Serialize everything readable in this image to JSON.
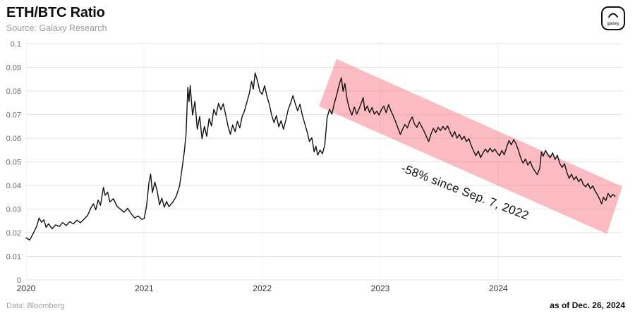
{
  "header": {
    "title": "ETH/BTC Ratio",
    "source": "Source: Galaxy Research",
    "logo_label": "galaxy"
  },
  "footer": {
    "data_source": "Data: Bloomberg",
    "as_of": "as of Dec. 26, 2024"
  },
  "chart_data": {
    "type": "line",
    "title": "ETH/BTC Ratio",
    "xlabel": "",
    "ylabel": "",
    "xlim": [
      2020,
      2025.05
    ],
    "ylim": [
      0,
      0.1
    ],
    "grid": true,
    "line_color": "#111111",
    "x_ticks": [
      {
        "value": 2020,
        "label": "2020"
      },
      {
        "value": 2021,
        "label": "2021"
      },
      {
        "value": 2022,
        "label": "2022"
      },
      {
        "value": 2023,
        "label": "2023"
      },
      {
        "value": 2024,
        "label": "2024"
      }
    ],
    "y_ticks": [
      {
        "value": 0,
        "label": "0"
      },
      {
        "value": 0.01,
        "label": "0.01"
      },
      {
        "value": 0.02,
        "label": "0.02"
      },
      {
        "value": 0.03,
        "label": "0.03"
      },
      {
        "value": 0.04,
        "label": "0.04"
      },
      {
        "value": 0.05,
        "label": "0.05"
      },
      {
        "value": 0.06,
        "label": "0.06"
      },
      {
        "value": 0.07,
        "label": "0.07"
      },
      {
        "value": 0.08,
        "label": "0.08"
      },
      {
        "value": 0.09,
        "label": "0.09"
      },
      {
        "value": 0.1,
        "label": "0.1"
      }
    ],
    "band": {
      "color": "#f4717e",
      "opacity": 0.48,
      "corners": [
        [
          2022.63,
          0.0935
        ],
        [
          2025.05,
          0.0395
        ],
        [
          2024.92,
          0.0195
        ],
        [
          2022.48,
          0.0735
        ]
      ]
    },
    "annotation": {
      "text": "-58% since Sep. 7, 2022",
      "x": 2023.17,
      "y": 0.046,
      "rotation_deg": 21
    },
    "series": [
      {
        "name": "ETH/BTC",
        "points": [
          [
            2020.0,
            0.0178
          ],
          [
            2020.03,
            0.0169
          ],
          [
            2020.06,
            0.0196
          ],
          [
            2020.09,
            0.0228
          ],
          [
            2020.11,
            0.0262
          ],
          [
            2020.13,
            0.0244
          ],
          [
            2020.15,
            0.0255
          ],
          [
            2020.17,
            0.0222
          ],
          [
            2020.19,
            0.0238
          ],
          [
            2020.22,
            0.0216
          ],
          [
            2020.25,
            0.0233
          ],
          [
            2020.28,
            0.0226
          ],
          [
            2020.31,
            0.0243
          ],
          [
            2020.34,
            0.023
          ],
          [
            2020.37,
            0.0247
          ],
          [
            2020.4,
            0.0237
          ],
          [
            2020.43,
            0.0253
          ],
          [
            2020.46,
            0.0242
          ],
          [
            2020.49,
            0.0257
          ],
          [
            2020.52,
            0.0272
          ],
          [
            2020.55,
            0.0306
          ],
          [
            2020.57,
            0.0322
          ],
          [
            2020.59,
            0.0297
          ],
          [
            2020.61,
            0.0338
          ],
          [
            2020.63,
            0.0316
          ],
          [
            2020.655,
            0.0392
          ],
          [
            2020.67,
            0.0358
          ],
          [
            2020.69,
            0.0372
          ],
          [
            2020.71,
            0.033
          ],
          [
            2020.74,
            0.0344
          ],
          [
            2020.77,
            0.0312
          ],
          [
            2020.8,
            0.0299
          ],
          [
            2020.83,
            0.0287
          ],
          [
            2020.86,
            0.0303
          ],
          [
            2020.89,
            0.0281
          ],
          [
            2020.92,
            0.0262
          ],
          [
            2020.95,
            0.0271
          ],
          [
            2020.98,
            0.0256
          ],
          [
            2021.0,
            0.026
          ],
          [
            2021.02,
            0.0312
          ],
          [
            2021.04,
            0.0408
          ],
          [
            2021.055,
            0.0448
          ],
          [
            2021.07,
            0.037
          ],
          [
            2021.09,
            0.0414
          ],
          [
            2021.11,
            0.0378
          ],
          [
            2021.13,
            0.0318
          ],
          [
            2021.15,
            0.0346
          ],
          [
            2021.17,
            0.0308
          ],
          [
            2021.19,
            0.0332
          ],
          [
            2021.21,
            0.031
          ],
          [
            2021.24,
            0.0328
          ],
          [
            2021.27,
            0.0352
          ],
          [
            2021.3,
            0.0398
          ],
          [
            2021.32,
            0.0468
          ],
          [
            2021.34,
            0.0542
          ],
          [
            2021.355,
            0.0618
          ],
          [
            2021.37,
            0.0815
          ],
          [
            2021.38,
            0.0755
          ],
          [
            2021.39,
            0.0822
          ],
          [
            2021.41,
            0.0698
          ],
          [
            2021.43,
            0.0756
          ],
          [
            2021.45,
            0.0638
          ],
          [
            2021.47,
            0.0692
          ],
          [
            2021.49,
            0.0598
          ],
          [
            2021.51,
            0.065
          ],
          [
            2021.53,
            0.0608
          ],
          [
            2021.55,
            0.0684
          ],
          [
            2021.57,
            0.0652
          ],
          [
            2021.59,
            0.0722
          ],
          [
            2021.61,
            0.0698
          ],
          [
            2021.63,
            0.0748
          ],
          [
            2021.65,
            0.072
          ],
          [
            2021.67,
            0.0746
          ],
          [
            2021.69,
            0.07
          ],
          [
            2021.71,
            0.0652
          ],
          [
            2021.73,
            0.0616
          ],
          [
            2021.75,
            0.0656
          ],
          [
            2021.77,
            0.0628
          ],
          [
            2021.79,
            0.0672
          ],
          [
            2021.81,
            0.0644
          ],
          [
            2021.83,
            0.0692
          ],
          [
            2021.85,
            0.0716
          ],
          [
            2021.87,
            0.0752
          ],
          [
            2021.89,
            0.0788
          ],
          [
            2021.91,
            0.084
          ],
          [
            2021.925,
            0.0808
          ],
          [
            2021.94,
            0.0876
          ],
          [
            2021.96,
            0.0842
          ],
          [
            2021.98,
            0.0798
          ],
          [
            2022.0,
            0.0786
          ],
          [
            2022.02,
            0.0822
          ],
          [
            2022.04,
            0.0778
          ],
          [
            2022.06,
            0.0744
          ],
          [
            2022.08,
            0.0698
          ],
          [
            2022.1,
            0.0666
          ],
          [
            2022.12,
            0.0696
          ],
          [
            2022.14,
            0.0648
          ],
          [
            2022.16,
            0.0674
          ],
          [
            2022.18,
            0.0638
          ],
          [
            2022.2,
            0.0676
          ],
          [
            2022.22,
            0.0722
          ],
          [
            2022.24,
            0.0748
          ],
          [
            2022.26,
            0.078
          ],
          [
            2022.28,
            0.0746
          ],
          [
            2022.3,
            0.0716
          ],
          [
            2022.32,
            0.0744
          ],
          [
            2022.34,
            0.0698
          ],
          [
            2022.36,
            0.0662
          ],
          [
            2022.38,
            0.0628
          ],
          [
            2022.4,
            0.0586
          ],
          [
            2022.42,
            0.0602
          ],
          [
            2022.44,
            0.0542
          ],
          [
            2022.455,
            0.0566
          ],
          [
            2022.47,
            0.0528
          ],
          [
            2022.49,
            0.055
          ],
          [
            2022.51,
            0.0534
          ],
          [
            2022.53,
            0.0572
          ],
          [
            2022.55,
            0.0688
          ],
          [
            2022.57,
            0.0722
          ],
          [
            2022.59,
            0.0702
          ],
          [
            2022.61,
            0.0746
          ],
          [
            2022.63,
            0.0782
          ],
          [
            2022.65,
            0.0822
          ],
          [
            2022.67,
            0.0856
          ],
          [
            2022.685,
            0.0798
          ],
          [
            2022.7,
            0.0832
          ],
          [
            2022.72,
            0.0762
          ],
          [
            2022.74,
            0.0722
          ],
          [
            2022.76,
            0.0698
          ],
          [
            2022.78,
            0.0732
          ],
          [
            2022.8,
            0.0702
          ],
          [
            2022.82,
            0.0724
          ],
          [
            2022.84,
            0.075
          ],
          [
            2022.855,
            0.0772
          ],
          [
            2022.87,
            0.0716
          ],
          [
            2022.89,
            0.0736
          ],
          [
            2022.91,
            0.0708
          ],
          [
            2022.93,
            0.073
          ],
          [
            2022.95,
            0.0702
          ],
          [
            2022.97,
            0.0714
          ],
          [
            2022.99,
            0.0698
          ],
          [
            2023.01,
            0.0722
          ],
          [
            2023.03,
            0.0736
          ],
          [
            2023.05,
            0.0708
          ],
          [
            2023.07,
            0.0742
          ],
          [
            2023.09,
            0.0716
          ],
          [
            2023.11,
            0.0694
          ],
          [
            2023.13,
            0.067
          ],
          [
            2023.15,
            0.0642
          ],
          [
            2023.17,
            0.0616
          ],
          [
            2023.19,
            0.064
          ],
          [
            2023.21,
            0.0658
          ],
          [
            2023.23,
            0.0644
          ],
          [
            2023.25,
            0.0672
          ],
          [
            2023.27,
            0.069
          ],
          [
            2023.29,
            0.066
          ],
          [
            2023.31,
            0.0646
          ],
          [
            2023.33,
            0.0668
          ],
          [
            2023.35,
            0.065
          ],
          [
            2023.37,
            0.063
          ],
          [
            2023.39,
            0.0608
          ],
          [
            2023.41,
            0.0586
          ],
          [
            2023.43,
            0.0618
          ],
          [
            2023.45,
            0.0642
          ],
          [
            2023.47,
            0.0624
          ],
          [
            2023.49,
            0.0646
          ],
          [
            2023.51,
            0.0632
          ],
          [
            2023.53,
            0.065
          ],
          [
            2023.55,
            0.0636
          ],
          [
            2023.57,
            0.0652
          ],
          [
            2023.59,
            0.0628
          ],
          [
            2023.61,
            0.0606
          ],
          [
            2023.63,
            0.0628
          ],
          [
            2023.65,
            0.06
          ],
          [
            2023.67,
            0.0616
          ],
          [
            2023.69,
            0.0594
          ],
          [
            2023.71,
            0.0608
          ],
          [
            2023.73,
            0.0586
          ],
          [
            2023.75,
            0.0598
          ],
          [
            2023.77,
            0.057
          ],
          [
            2023.79,
            0.0546
          ],
          [
            2023.81,
            0.0526
          ],
          [
            2023.83,
            0.0546
          ],
          [
            2023.85,
            0.0518
          ],
          [
            2023.87,
            0.0538
          ],
          [
            2023.89,
            0.0554
          ],
          [
            2023.91,
            0.054
          ],
          [
            2023.93,
            0.0558
          ],
          [
            2023.95,
            0.0542
          ],
          [
            2023.97,
            0.0554
          ],
          [
            2023.99,
            0.0538
          ],
          [
            2024.01,
            0.0526
          ],
          [
            2024.03,
            0.0548
          ],
          [
            2024.05,
            0.053
          ],
          [
            2024.07,
            0.0562
          ],
          [
            2024.09,
            0.059
          ],
          [
            2024.11,
            0.0572
          ],
          [
            2024.13,
            0.0594
          ],
          [
            2024.15,
            0.0576
          ],
          [
            2024.17,
            0.0548
          ],
          [
            2024.19,
            0.0516
          ],
          [
            2024.21,
            0.0494
          ],
          [
            2024.23,
            0.0512
          ],
          [
            2024.25,
            0.0486
          ],
          [
            2024.27,
            0.0502
          ],
          [
            2024.29,
            0.0476
          ],
          [
            2024.31,
            0.046
          ],
          [
            2024.33,
            0.0446
          ],
          [
            2024.35,
            0.0472
          ],
          [
            2024.365,
            0.0542
          ],
          [
            2024.38,
            0.0524
          ],
          [
            2024.4,
            0.0548
          ],
          [
            2024.42,
            0.053
          ],
          [
            2024.44,
            0.0518
          ],
          [
            2024.46,
            0.0538
          ],
          [
            2024.48,
            0.051
          ],
          [
            2024.5,
            0.0528
          ],
          [
            2024.52,
            0.0494
          ],
          [
            2024.54,
            0.0476
          ],
          [
            2024.56,
            0.0492
          ],
          [
            2024.58,
            0.0456
          ],
          [
            2024.6,
            0.043
          ],
          [
            2024.62,
            0.0448
          ],
          [
            2024.64,
            0.0424
          ],
          [
            2024.66,
            0.0438
          ],
          [
            2024.68,
            0.0416
          ],
          [
            2024.7,
            0.0428
          ],
          [
            2024.72,
            0.0404
          ],
          [
            2024.74,
            0.0394
          ],
          [
            2024.76,
            0.0408
          ],
          [
            2024.78,
            0.0386
          ],
          [
            2024.8,
            0.0398
          ],
          [
            2024.82,
            0.0376
          ],
          [
            2024.84,
            0.036
          ],
          [
            2024.86,
            0.034
          ],
          [
            2024.875,
            0.0322
          ],
          [
            2024.89,
            0.035
          ],
          [
            2024.91,
            0.0336
          ],
          [
            2024.93,
            0.0366
          ],
          [
            2024.95,
            0.035
          ],
          [
            2024.97,
            0.0362
          ],
          [
            2024.99,
            0.0354
          ]
        ]
      }
    ]
  }
}
